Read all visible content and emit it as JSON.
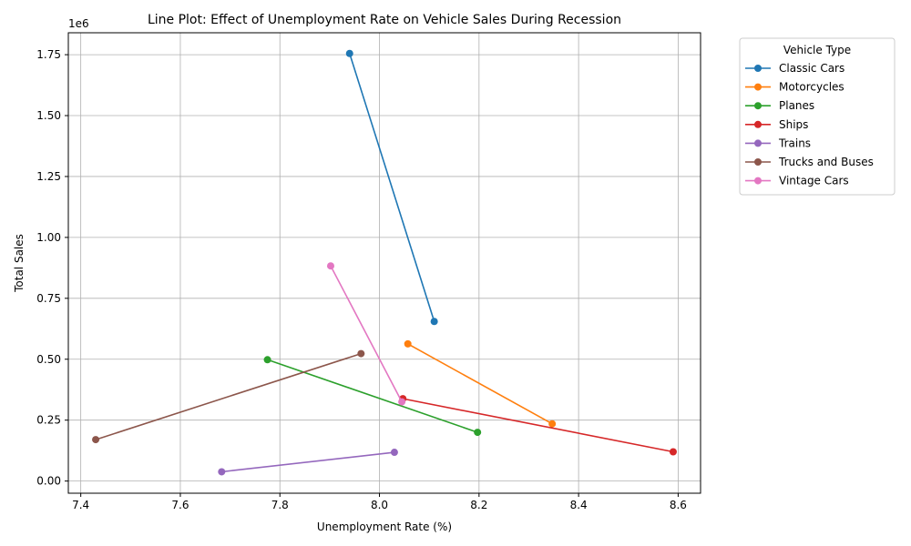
{
  "chart_data": {
    "type": "line",
    "title": "Line Plot: Effect of Unemployment Rate on Vehicle Sales During Recession",
    "xlabel": "Unemployment Rate (%)",
    "ylabel": "Total Sales",
    "y_scale_label": "1e6",
    "xlim": [
      7.375,
      8.645
    ],
    "ylim": [
      -0.05,
      1.84
    ],
    "x_ticks": [
      7.4,
      7.6,
      7.8,
      8.0,
      8.2,
      8.4,
      8.6
    ],
    "x_tick_labels": [
      "7.4",
      "7.6",
      "7.8",
      "8.0",
      "8.2",
      "8.4",
      "8.6"
    ],
    "y_ticks": [
      0,
      0.25,
      0.5,
      0.75,
      1.0,
      1.25,
      1.5,
      1.75
    ],
    "y_tick_labels": [
      "0.00",
      "0.25",
      "0.50",
      "0.75",
      "1.00",
      "1.25",
      "1.50",
      "1.75"
    ],
    "grid": true,
    "legend": {
      "title": "Vehicle Type",
      "placement": "outside-right-top"
    },
    "series": [
      {
        "name": "Classic Cars",
        "color": "#1f77b4",
        "points": [
          [
            7.94,
            1.755
          ],
          [
            8.11,
            0.655
          ]
        ]
      },
      {
        "name": "Motorcycles",
        "color": "#ff7f0e",
        "points": [
          [
            8.057,
            0.563
          ],
          [
            8.347,
            0.235
          ]
        ]
      },
      {
        "name": "Planes",
        "color": "#2ca02c",
        "points": [
          [
            7.775,
            0.498
          ],
          [
            8.197,
            0.2
          ]
        ]
      },
      {
        "name": "Ships",
        "color": "#d62728",
        "points": [
          [
            8.047,
            0.338
          ],
          [
            8.59,
            0.12
          ]
        ]
      },
      {
        "name": "Trains",
        "color": "#9467bd",
        "points": [
          [
            7.683,
            0.038
          ],
          [
            8.03,
            0.118
          ]
        ]
      },
      {
        "name": "Trucks and Buses",
        "color": "#8c564b",
        "points": [
          [
            7.43,
            0.17
          ],
          [
            7.963,
            0.523
          ]
        ]
      },
      {
        "name": "Vintage Cars",
        "color": "#e377c2",
        "points": [
          [
            7.902,
            0.883
          ],
          [
            8.045,
            0.325
          ]
        ]
      }
    ]
  }
}
